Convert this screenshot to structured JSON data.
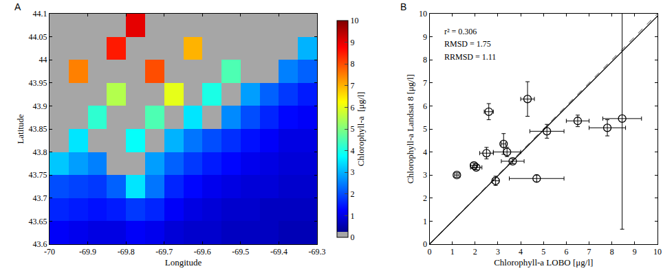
{
  "chart_data": [
    {
      "type": "heatmap",
      "panel_label": "A",
      "x_label": "Longitude",
      "y_label": "Latitude",
      "x": [
        -69.975,
        -69.925,
        -69.875,
        -69.825,
        -69.775,
        -69.725,
        -69.675,
        -69.625,
        -69.575,
        -69.525,
        -69.475,
        -69.425,
        -69.375,
        -69.325
      ],
      "y": [
        43.625,
        43.675,
        43.725,
        43.775,
        43.825,
        43.875,
        43.925,
        43.975,
        44.025,
        44.075
      ],
      "z": [
        [
          1.2,
          1.1,
          1.0,
          1.0,
          1.2,
          1.1,
          0.9,
          0.8,
          0.8,
          0.7,
          0.7,
          0.7,
          0.6,
          0.6
        ],
        [
          1.6,
          1.5,
          1.4,
          1.5,
          1.8,
          1.6,
          1.2,
          1.0,
          0.9,
          0.8,
          0.8,
          0.7,
          0.7,
          0.7
        ],
        [
          2.0,
          1.9,
          1.8,
          2.2,
          3.5,
          2.4,
          1.6,
          1.3,
          1.1,
          1.0,
          0.9,
          0.9,
          0.8,
          0.8
        ],
        [
          3.2,
          2.8,
          2.5,
          0,
          0,
          2.8,
          2.2,
          1.8,
          1.5,
          1.3,
          1.1,
          1.0,
          0.9,
          0.9
        ],
        [
          0,
          3.5,
          0,
          0,
          3.8,
          0,
          3.0,
          2.4,
          2.0,
          1.7,
          1.4,
          1.2,
          1.0,
          1.0
        ],
        [
          0,
          0,
          4.2,
          0,
          0,
          4.5,
          0,
          3.5,
          0,
          2.6,
          2.0,
          1.6,
          1.3,
          1.2
        ],
        [
          0,
          0,
          0,
          5.5,
          0,
          0,
          6.0,
          0,
          4.0,
          0,
          2.8,
          2.2,
          1.8,
          1.5
        ],
        [
          0,
          7.5,
          0,
          0,
          0,
          8.0,
          0,
          0,
          0,
          4.5,
          0,
          0,
          2.5,
          2.2
        ],
        [
          0,
          0,
          0,
          8.5,
          0,
          0,
          0,
          7.0,
          0,
          0,
          0,
          0,
          0,
          3.0
        ],
        [
          0,
          0,
          0,
          0,
          9.0,
          0,
          0,
          0,
          0,
          0,
          0,
          0,
          0,
          0
        ]
      ],
      "xlim": [
        -70,
        -69.3
      ],
      "ylim": [
        43.6,
        44.1
      ],
      "xticks": [
        -70,
        -69.9,
        -69.8,
        -69.7,
        -69.6,
        -69.5,
        -69.4,
        -69.3
      ],
      "yticks": [
        43.6,
        43.65,
        43.7,
        43.75,
        43.8,
        43.85,
        43.9,
        43.95,
        44,
        44.05,
        44.1
      ],
      "colorbar": {
        "title": "Chlorophyll-a  [μg/l]",
        "range": [
          0,
          10
        ],
        "ticks": [
          0,
          1,
          2,
          3,
          4,
          5,
          6,
          7,
          8,
          9,
          10
        ]
      }
    },
    {
      "type": "scatter",
      "panel_label": "B",
      "x_label": "Chlorophyll-a LOBO [μg/l]",
      "y_label": "Chlorophyll-a Landsat 8 [μg/l]",
      "marker": "circle-open",
      "color": "#000000",
      "x": [
        1.2,
        1.95,
        2.05,
        2.5,
        2.6,
        2.9,
        3.25,
        3.4,
        3.65,
        4.3,
        4.7,
        5.15,
        6.5,
        7.8,
        8.45
      ],
      "y": [
        3.0,
        3.42,
        3.33,
        3.95,
        5.75,
        2.75,
        4.35,
        4.0,
        3.6,
        6.3,
        2.85,
        4.9,
        5.35,
        5.05,
        5.45
      ],
      "x_error": [
        0.1,
        0.15,
        0.25,
        0.3,
        0.2,
        0.15,
        0.1,
        0.6,
        0.5,
        0.3,
        1.2,
        0.75,
        0.5,
        0.8,
        0.85
      ],
      "y_error": [
        0.1,
        0.1,
        0.1,
        0.25,
        0.35,
        0.2,
        0.45,
        0.2,
        0.1,
        0.75,
        0.15,
        0.3,
        0.25,
        0.35,
        4.8
      ],
      "series": [
        {
          "x": [
            0,
            10
          ],
          "values": [
            0,
            10
          ],
          "color": "#888888",
          "line_style": "dash"
        },
        {
          "x": [
            0,
            10
          ],
          "values": [
            0,
            9.9
          ],
          "color": "#000000",
          "line_style": "solid"
        }
      ],
      "annotations": [
        "r² = 0.306",
        "RMSD = 1.75",
        "RRMSD = 1.11"
      ],
      "xlim": [
        0,
        10
      ],
      "ylim": [
        0,
        10
      ],
      "xticks": [
        0,
        1,
        2,
        3,
        4,
        5,
        6,
        7,
        8,
        9,
        10
      ],
      "yticks": [
        0,
        1,
        2,
        3,
        4,
        5,
        6,
        7,
        8,
        9,
        10
      ]
    }
  ]
}
